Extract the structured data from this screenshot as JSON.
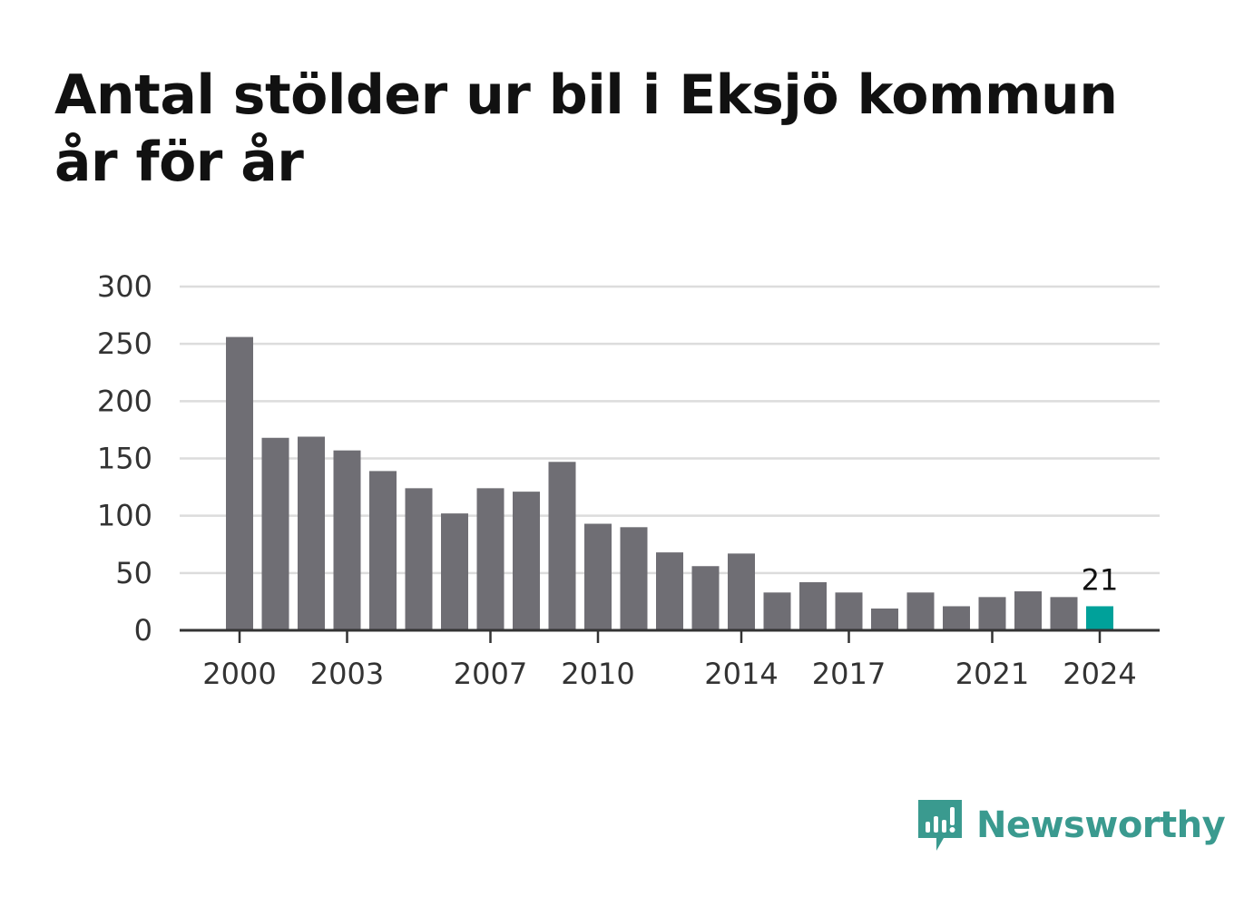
{
  "chart_data": {
    "type": "bar",
    "title": "Antal stölder ur bil i Eksjö kommun år för år",
    "x": [
      2000,
      2001,
      2002,
      2003,
      2004,
      2005,
      2006,
      2007,
      2008,
      2009,
      2010,
      2011,
      2012,
      2013,
      2014,
      2015,
      2016,
      2017,
      2018,
      2019,
      2020,
      2021,
      2022,
      2023,
      2024
    ],
    "values": [
      256,
      168,
      169,
      157,
      139,
      124,
      102,
      124,
      121,
      147,
      93,
      90,
      68,
      56,
      67,
      33,
      42,
      33,
      19,
      33,
      21,
      29,
      34,
      29,
      21
    ],
    "x_tick_labels": [
      "2000",
      "2003",
      "2007",
      "2010",
      "2014",
      "2017",
      "2021",
      "2024"
    ],
    "y_ticks": [
      0,
      50,
      100,
      150,
      200,
      250,
      300
    ],
    "ylim": [
      0,
      300
    ],
    "highlight": {
      "year": 2024,
      "label": "21"
    },
    "grid": true,
    "colors": {
      "bar": "#6f6e74",
      "highlight": "#00a19a",
      "grid": "#dcdcdc",
      "axis": "#333333"
    }
  },
  "brand": {
    "name": "Newsworthy",
    "icon": "newsworthy-logo-icon",
    "color": "#3a9a8f"
  }
}
